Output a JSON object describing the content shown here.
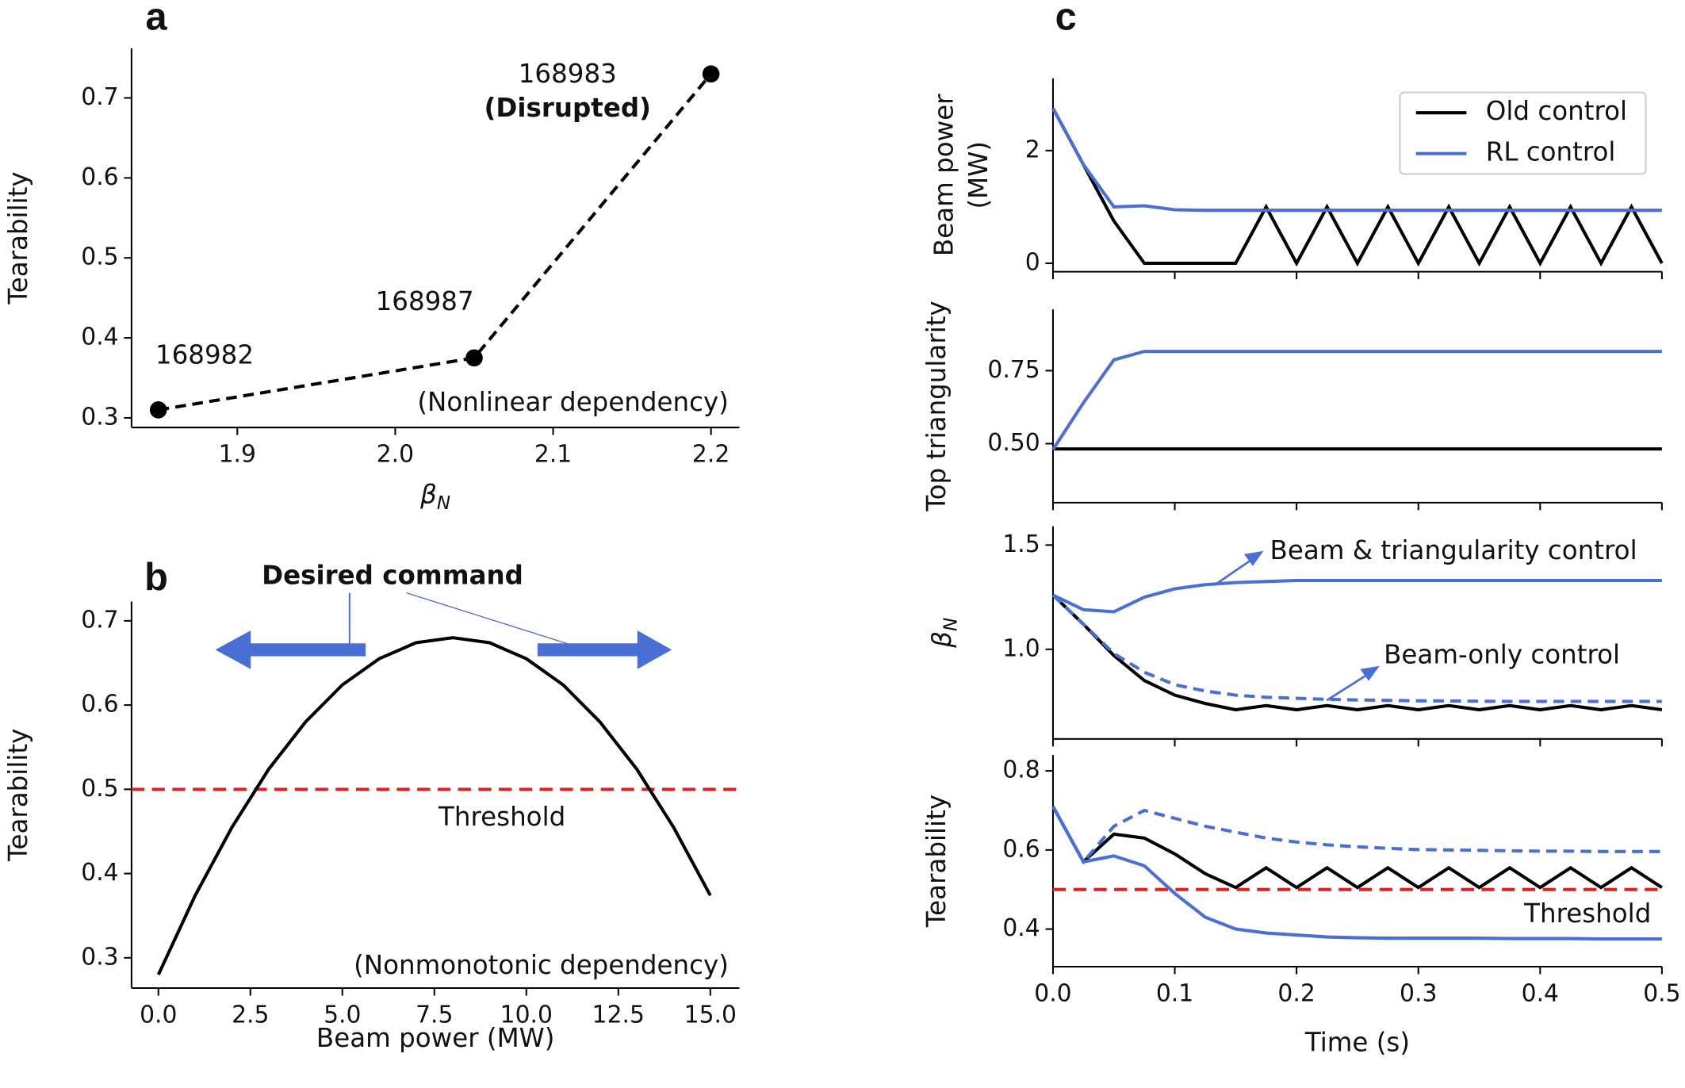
{
  "chart_data": [
    {
      "panel": "a",
      "type": "line",
      "x": [
        1.85,
        2.05,
        2.2
      ],
      "series": [
        {
          "color": "#000000",
          "linestyle": "dashed",
          "marker": "circle",
          "values": [
            0.31,
            0.375,
            0.73
          ]
        }
      ],
      "point_labels": [
        "168982",
        "168987",
        "168983"
      ],
      "annotations": [
        "(Disrupted)",
        "(Nonlinear dependency)"
      ],
      "xlabel": {
        "base": "β",
        "sub": "N"
      },
      "ylabel": "Tearability",
      "xlim": [
        1.833,
        2.218
      ],
      "ylim": [
        0.288,
        0.762
      ],
      "xticks": [
        1.9,
        {
          "value": 2,
          "label": "2.0"
        },
        2.1,
        2.2
      ],
      "yticks": [
        0.3,
        0.4,
        0.5,
        0.6,
        0.7
      ]
    },
    {
      "panel": "b",
      "type": "line",
      "x": [
        0,
        1,
        2,
        3,
        4,
        5,
        6,
        7,
        8,
        9,
        10,
        11,
        12,
        13,
        14,
        15
      ],
      "series": [
        {
          "color": "#000000",
          "linestyle": "solid",
          "values": [
            0.28,
            0.374,
            0.455,
            0.524,
            0.58,
            0.624,
            0.655,
            0.674,
            0.68,
            0.674,
            0.655,
            0.624,
            0.58,
            0.524,
            0.455,
            0.374
          ]
        }
      ],
      "hline": {
        "value": 0.5,
        "color": "#e02020",
        "label": "Threshold"
      },
      "annotations": [
        "Desired command",
        "(Nonmonotonic dependency)"
      ],
      "xlabel": "Beam power (MW)",
      "ylabel": "Tearability",
      "xlim": [
        -0.73,
        15.79
      ],
      "ylim": [
        0.264,
        0.723
      ],
      "xticks": [
        {
          "value": 0,
          "label": "0.0"
        },
        2.5,
        {
          "value": 5,
          "label": "5.0"
        },
        7.5,
        {
          "value": 10,
          "label": "10.0"
        },
        12.5,
        {
          "value": 15,
          "label": "15.0"
        }
      ],
      "yticks": [
        0.3,
        0.4,
        0.5,
        0.6,
        0.7
      ]
    },
    {
      "panel": "c",
      "type": "line",
      "x": [
        0,
        0.025,
        0.05,
        0.075,
        0.1,
        0.125,
        0.15,
        0.175,
        0.2,
        0.225,
        0.25,
        0.275,
        0.3,
        0.325,
        0.35,
        0.375,
        0.4,
        0.425,
        0.45,
        0.475,
        0.5
      ],
      "series": [
        {
          "name": "Old control",
          "color": "#000000",
          "linestyle": "solid",
          "values": [
            2.75,
            1.75,
            0.75,
            0,
            0,
            0,
            0,
            1,
            0,
            1,
            0,
            1,
            0,
            1,
            0,
            1,
            0,
            1,
            0,
            1,
            0
          ]
        },
        {
          "name": "RL control",
          "color": "#4a6fd4",
          "linestyle": "solid",
          "values": [
            2.75,
            1.75,
            1.0,
            1.02,
            0.95,
            0.94,
            0.94,
            0.94,
            0.94,
            0.94,
            0.94,
            0.94,
            0.94,
            0.94,
            0.94,
            0.94,
            0.94,
            0.94,
            0.94,
            0.94,
            0.94
          ]
        }
      ],
      "legend": "upper right",
      "ylabel": [
        "Beam power",
        "(MW)"
      ],
      "xlim": [
        0,
        0.5
      ],
      "ylim": [
        -0.15,
        3.28
      ],
      "yticks": [
        0,
        2
      ]
    },
    {
      "type": "line",
      "x": [
        0,
        0.025,
        0.05,
        0.075,
        0.1,
        0.125,
        0.15,
        0.175,
        0.2,
        0.225,
        0.25,
        0.275,
        0.3,
        0.325,
        0.35,
        0.375,
        0.4,
        0.425,
        0.45,
        0.475,
        0.5
      ],
      "series": [
        {
          "color": "#000000",
          "linestyle": "solid",
          "values": [
            0.482,
            0.482,
            0.482,
            0.482,
            0.482,
            0.482,
            0.482,
            0.482,
            0.482,
            0.482,
            0.482,
            0.482,
            0.482,
            0.482,
            0.482,
            0.482,
            0.482,
            0.482,
            0.482,
            0.482,
            0.482
          ]
        },
        {
          "color": "#4a6fd4",
          "linestyle": "solid",
          "values": [
            0.48,
            0.64,
            0.787,
            0.816,
            0.816,
            0.816,
            0.816,
            0.816,
            0.816,
            0.816,
            0.816,
            0.816,
            0.816,
            0.816,
            0.816,
            0.816,
            0.816,
            0.816,
            0.816,
            0.816,
            0.816
          ]
        }
      ],
      "ylabel": "Top triangularity",
      "xlim": [
        0,
        0.5
      ],
      "ylim": [
        0.298,
        0.96
      ],
      "yticks": [
        {
          "value": 0.5,
          "label": "0.50"
        },
        0.75
      ]
    },
    {
      "type": "line",
      "x": [
        0,
        0.025,
        0.05,
        0.075,
        0.1,
        0.125,
        0.15,
        0.175,
        0.2,
        0.225,
        0.25,
        0.275,
        0.3,
        0.325,
        0.35,
        0.375,
        0.4,
        0.425,
        0.45,
        0.475,
        0.5
      ],
      "series": [
        {
          "color": "#000000",
          "linestyle": "solid",
          "values": [
            1.26,
            1.12,
            0.97,
            0.85,
            0.78,
            0.74,
            0.71,
            0.73,
            0.71,
            0.73,
            0.71,
            0.73,
            0.71,
            0.73,
            0.71,
            0.73,
            0.71,
            0.73,
            0.71,
            0.73,
            0.71
          ]
        },
        {
          "color": "#4a6fd4",
          "linestyle": "solid",
          "values": [
            1.26,
            1.19,
            1.18,
            1.25,
            1.29,
            1.31,
            1.32,
            1.325,
            1.33,
            1.33,
            1.33,
            1.33,
            1.33,
            1.33,
            1.33,
            1.33,
            1.33,
            1.33,
            1.33,
            1.33,
            1.33
          ]
        },
        {
          "color": "#4a6fd4",
          "linestyle": "dashed",
          "values": [
            1.26,
            1.12,
            0.98,
            0.89,
            0.83,
            0.8,
            0.78,
            0.77,
            0.765,
            0.76,
            0.757,
            0.755,
            0.753,
            0.752,
            0.751,
            0.75,
            0.75,
            0.75,
            0.75,
            0.75,
            0.75
          ]
        }
      ],
      "annotations": [
        "Beam & triangularity control",
        "Beam-only control"
      ],
      "ylabel": {
        "base": "β",
        "sub": "N"
      },
      "xlim": [
        0,
        0.5
      ],
      "ylim": [
        0.57,
        1.59
      ],
      "yticks": [
        {
          "value": 1,
          "label": "1.0"
        },
        1.5
      ]
    },
    {
      "type": "line",
      "x": [
        0,
        0.025,
        0.05,
        0.075,
        0.1,
        0.125,
        0.15,
        0.175,
        0.2,
        0.225,
        0.25,
        0.275,
        0.3,
        0.325,
        0.35,
        0.375,
        0.4,
        0.425,
        0.45,
        0.475,
        0.5
      ],
      "series": [
        {
          "color": "#000000",
          "linestyle": "solid",
          "values": [
            0.71,
            0.57,
            0.64,
            0.63,
            0.59,
            0.54,
            0.505,
            0.555,
            0.505,
            0.555,
            0.505,
            0.555,
            0.505,
            0.555,
            0.505,
            0.555,
            0.505,
            0.555,
            0.505,
            0.555,
            0.505
          ]
        },
        {
          "color": "#4a6fd4",
          "linestyle": "solid",
          "values": [
            0.71,
            0.57,
            0.585,
            0.56,
            0.49,
            0.43,
            0.4,
            0.39,
            0.385,
            0.38,
            0.378,
            0.377,
            0.377,
            0.377,
            0.377,
            0.376,
            0.376,
            0.376,
            0.375,
            0.375,
            0.375
          ]
        },
        {
          "color": "#4a6fd4",
          "linestyle": "dashed",
          "values": [
            0.71,
            0.57,
            0.66,
            0.7,
            0.68,
            0.66,
            0.645,
            0.63,
            0.62,
            0.613,
            0.608,
            0.604,
            0.601,
            0.6,
            0.599,
            0.598,
            0.597,
            0.597,
            0.596,
            0.596,
            0.596
          ]
        }
      ],
      "hline": {
        "value": 0.5,
        "color": "#e02020",
        "label": "Threshold"
      },
      "xlabel": "Time (s)",
      "ylabel": "Tearability",
      "xlim": [
        0,
        0.5
      ],
      "ylim": [
        0.305,
        0.84
      ],
      "xticks": [
        {
          "value": 0,
          "label": "0.0"
        },
        0.1,
        0.2,
        0.3,
        0.4,
        0.5
      ],
      "yticks": [
        0.4,
        0.6,
        0.8
      ]
    }
  ]
}
